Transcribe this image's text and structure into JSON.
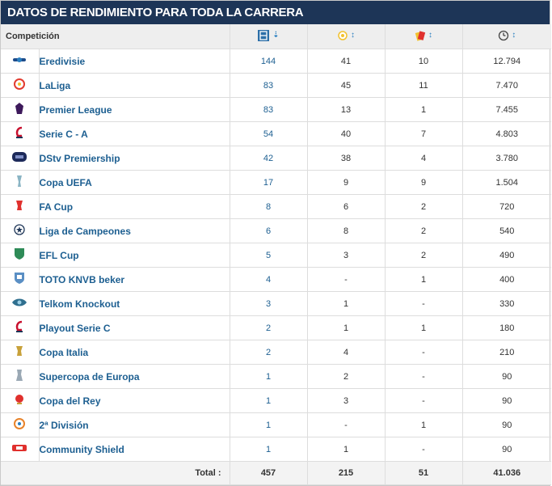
{
  "title": "DATOS DE RENDIMIENTO PARA TODA LA CARRERA",
  "header": {
    "competition": "Competición",
    "col_icons": [
      "appearances-icon",
      "goals-icon",
      "cards-icon",
      "clock-icon"
    ],
    "sort_symbols": [
      "⇣",
      "↕",
      "↕",
      "↕"
    ]
  },
  "rows": [
    {
      "name": "Eredivisie",
      "icon": "eredivisie-logo",
      "apps": "144",
      "goals": "41",
      "cards": "10",
      "minutes": "12.794"
    },
    {
      "name": "LaLiga",
      "icon": "laliga-logo",
      "apps": "83",
      "goals": "45",
      "cards": "11",
      "minutes": "7.470"
    },
    {
      "name": "Premier League",
      "icon": "premier-league-logo",
      "apps": "83",
      "goals": "13",
      "cards": "1",
      "minutes": "7.455"
    },
    {
      "name": "Serie C - A",
      "icon": "serie-c-logo",
      "apps": "54",
      "goals": "40",
      "cards": "7",
      "minutes": "4.803"
    },
    {
      "name": "DStv Premiership",
      "icon": "dstv-premiership-logo",
      "apps": "42",
      "goals": "38",
      "cards": "4",
      "minutes": "3.780"
    },
    {
      "name": "Copa UEFA",
      "icon": "uefa-cup-logo",
      "apps": "17",
      "goals": "9",
      "cards": "9",
      "minutes": "1.504"
    },
    {
      "name": "FA Cup",
      "icon": "fa-cup-logo",
      "apps": "8",
      "goals": "6",
      "cards": "2",
      "minutes": "720"
    },
    {
      "name": "Liga de Campeones",
      "icon": "champions-league-logo",
      "apps": "6",
      "goals": "8",
      "cards": "2",
      "minutes": "540"
    },
    {
      "name": "EFL Cup",
      "icon": "efl-cup-logo",
      "apps": "5",
      "goals": "3",
      "cards": "2",
      "minutes": "490"
    },
    {
      "name": "TOTO KNVB beker",
      "icon": "knvb-beker-logo",
      "apps": "4",
      "goals": "-",
      "cards": "1",
      "minutes": "400"
    },
    {
      "name": "Telkom Knockout",
      "icon": "telkom-knockout-logo",
      "apps": "3",
      "goals": "1",
      "cards": "-",
      "minutes": "330"
    },
    {
      "name": "Playout Serie C",
      "icon": "serie-c-logo",
      "apps": "2",
      "goals": "1",
      "cards": "1",
      "minutes": "180"
    },
    {
      "name": "Copa Italia",
      "icon": "coppa-italia-logo",
      "apps": "2",
      "goals": "4",
      "cards": "-",
      "minutes": "210"
    },
    {
      "name": "Supercopa de Europa",
      "icon": "uefa-super-cup-logo",
      "apps": "1",
      "goals": "2",
      "cards": "-",
      "minutes": "90"
    },
    {
      "name": "Copa del Rey",
      "icon": "copa-del-rey-logo",
      "apps": "1",
      "goals": "3",
      "cards": "-",
      "minutes": "90"
    },
    {
      "name": "2ª División",
      "icon": "segunda-division-logo",
      "apps": "1",
      "goals": "-",
      "cards": "1",
      "minutes": "90"
    },
    {
      "name": "Community Shield",
      "icon": "community-shield-logo",
      "apps": "1",
      "goals": "1",
      "cards": "-",
      "minutes": "90"
    }
  ],
  "totals": {
    "label": "Total :",
    "apps": "457",
    "goals": "215",
    "cards": "51",
    "minutes": "41.036"
  },
  "colors": {
    "title_bg": "#1d3557",
    "link": "#1d5f91",
    "header_bg": "#eeeeee",
    "sort": "#2a7fc0"
  }
}
